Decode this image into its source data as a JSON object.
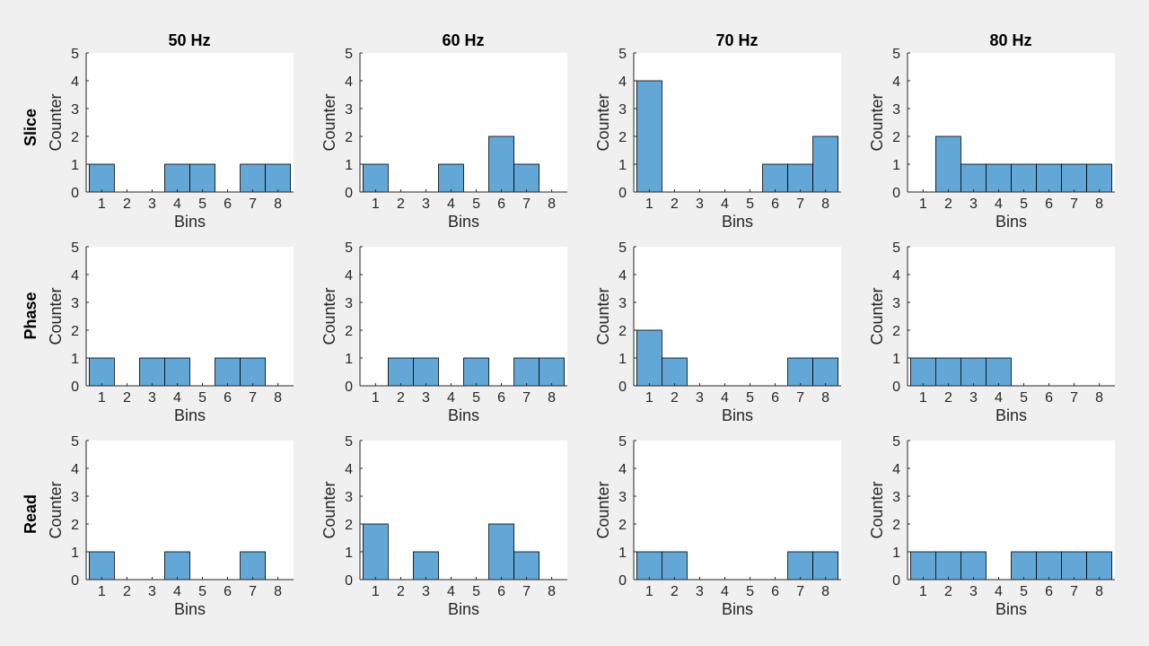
{
  "figure": {
    "background_color": "#f0f0f0",
    "bar_color": "#63a7d6",
    "edge_color": "#000000",
    "column_titles": [
      "50 Hz",
      "60 Hz",
      "70 Hz",
      "80 Hz"
    ],
    "row_titles": [
      "Slice",
      "Phase",
      "Read"
    ]
  },
  "chart_data": [
    {
      "type": "bar",
      "row": 0,
      "col": 0,
      "xlabel": "Bins",
      "ylabel": "Counter",
      "categories": [
        1,
        2,
        3,
        4,
        5,
        6,
        7,
        8
      ],
      "values": [
        1,
        0,
        0,
        1,
        1,
        0,
        1,
        1
      ],
      "ylim": [
        0,
        5
      ],
      "yticks": [
        0,
        1,
        2,
        3,
        4,
        5
      ],
      "grid": false
    },
    {
      "type": "bar",
      "row": 0,
      "col": 1,
      "xlabel": "Bins",
      "ylabel": "Counter",
      "categories": [
        1,
        2,
        3,
        4,
        5,
        6,
        7,
        8
      ],
      "values": [
        1,
        0,
        0,
        1,
        0,
        2,
        1,
        0
      ],
      "ylim": [
        0,
        5
      ],
      "yticks": [
        0,
        1,
        2,
        3,
        4,
        5
      ],
      "grid": false
    },
    {
      "type": "bar",
      "row": 0,
      "col": 2,
      "xlabel": "Bins",
      "ylabel": "Counter",
      "categories": [
        1,
        2,
        3,
        4,
        5,
        6,
        7,
        8
      ],
      "values": [
        4,
        0,
        0,
        0,
        0,
        1,
        1,
        2
      ],
      "ylim": [
        0,
        5
      ],
      "yticks": [
        0,
        1,
        2,
        3,
        4,
        5
      ],
      "grid": false
    },
    {
      "type": "bar",
      "row": 0,
      "col": 3,
      "xlabel": "Bins",
      "ylabel": "Counter",
      "categories": [
        1,
        2,
        3,
        4,
        5,
        6,
        7,
        8
      ],
      "values": [
        0,
        2,
        1,
        1,
        1,
        1,
        1,
        1
      ],
      "ylim": [
        0,
        5
      ],
      "yticks": [
        0,
        1,
        2,
        3,
        4,
        5
      ],
      "grid": false
    },
    {
      "type": "bar",
      "row": 1,
      "col": 0,
      "xlabel": "Bins",
      "ylabel": "Counter",
      "categories": [
        1,
        2,
        3,
        4,
        5,
        6,
        7,
        8
      ],
      "values": [
        1,
        0,
        1,
        1,
        0,
        1,
        1,
        0
      ],
      "ylim": [
        0,
        5
      ],
      "yticks": [
        0,
        1,
        2,
        3,
        4,
        5
      ],
      "grid": false
    },
    {
      "type": "bar",
      "row": 1,
      "col": 1,
      "xlabel": "Bins",
      "ylabel": "Counter",
      "categories": [
        1,
        2,
        3,
        4,
        5,
        6,
        7,
        8
      ],
      "values": [
        0,
        1,
        1,
        0,
        1,
        0,
        1,
        1
      ],
      "ylim": [
        0,
        5
      ],
      "yticks": [
        0,
        1,
        2,
        3,
        4,
        5
      ],
      "grid": false
    },
    {
      "type": "bar",
      "row": 1,
      "col": 2,
      "xlabel": "Bins",
      "ylabel": "Counter",
      "categories": [
        1,
        2,
        3,
        4,
        5,
        6,
        7,
        8
      ],
      "values": [
        2,
        1,
        0,
        0,
        0,
        0,
        1,
        1
      ],
      "ylim": [
        0,
        5
      ],
      "yticks": [
        0,
        1,
        2,
        3,
        4,
        5
      ],
      "grid": false
    },
    {
      "type": "bar",
      "row": 1,
      "col": 3,
      "xlabel": "Bins",
      "ylabel": "Counter",
      "categories": [
        1,
        2,
        3,
        4,
        5,
        6,
        7,
        8
      ],
      "values": [
        1,
        1,
        1,
        1,
        0,
        0,
        0,
        0
      ],
      "ylim": [
        0,
        5
      ],
      "yticks": [
        0,
        1,
        2,
        3,
        4,
        5
      ],
      "grid": false
    },
    {
      "type": "bar",
      "row": 2,
      "col": 0,
      "xlabel": "Bins",
      "ylabel": "Counter",
      "categories": [
        1,
        2,
        3,
        4,
        5,
        6,
        7,
        8
      ],
      "values": [
        1,
        0,
        0,
        1,
        0,
        0,
        1,
        0
      ],
      "ylim": [
        0,
        5
      ],
      "yticks": [
        0,
        1,
        2,
        3,
        4,
        5
      ],
      "grid": false
    },
    {
      "type": "bar",
      "row": 2,
      "col": 1,
      "xlabel": "Bins",
      "ylabel": "Counter",
      "categories": [
        1,
        2,
        3,
        4,
        5,
        6,
        7,
        8
      ],
      "values": [
        2,
        0,
        1,
        0,
        0,
        2,
        1,
        0
      ],
      "ylim": [
        0,
        5
      ],
      "yticks": [
        0,
        1,
        2,
        3,
        4,
        5
      ],
      "grid": false
    },
    {
      "type": "bar",
      "row": 2,
      "col": 2,
      "xlabel": "Bins",
      "ylabel": "Counter",
      "categories": [
        1,
        2,
        3,
        4,
        5,
        6,
        7,
        8
      ],
      "values": [
        1,
        1,
        0,
        0,
        0,
        0,
        1,
        1
      ],
      "ylim": [
        0,
        5
      ],
      "yticks": [
        0,
        1,
        2,
        3,
        4,
        5
      ],
      "grid": false
    },
    {
      "type": "bar",
      "row": 2,
      "col": 3,
      "xlabel": "Bins",
      "ylabel": "Counter",
      "categories": [
        1,
        2,
        3,
        4,
        5,
        6,
        7,
        8
      ],
      "values": [
        1,
        1,
        1,
        0,
        1,
        1,
        1,
        1
      ],
      "ylim": [
        0,
        5
      ],
      "yticks": [
        0,
        1,
        2,
        3,
        4,
        5
      ],
      "grid": false
    }
  ]
}
